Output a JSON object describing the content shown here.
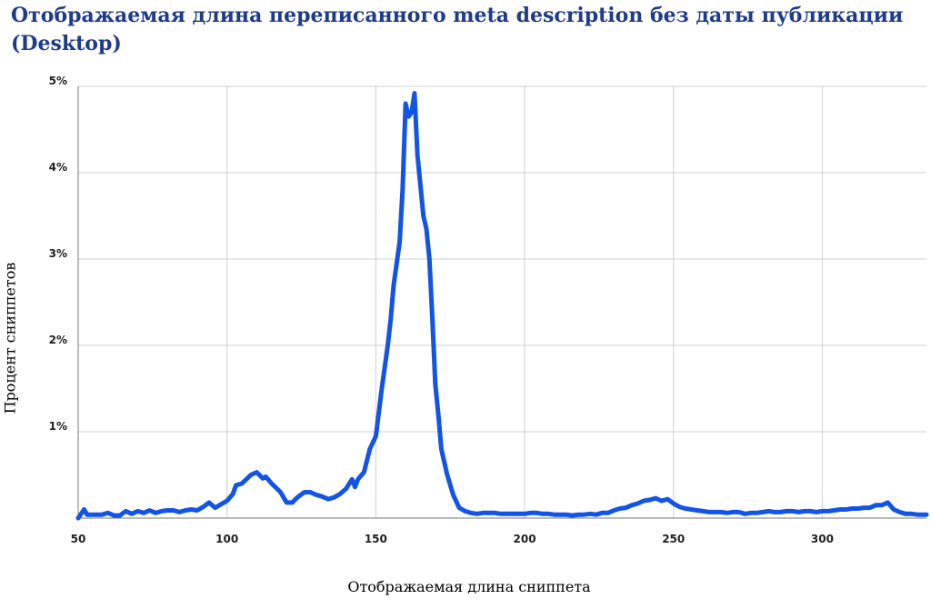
{
  "chart_data": {
    "type": "line",
    "title": "Отображаемая длина переписанного meta description без даты публикации (Desktop)",
    "xlabel": "Отображаемая длина сниппета",
    "ylabel": "Процент сниппетов",
    "xlim": [
      50,
      335
    ],
    "ylim": [
      0,
      5
    ],
    "x_ticks": [
      50,
      100,
      150,
      200,
      250,
      300
    ],
    "y_ticks": [
      1,
      2,
      3,
      4,
      5
    ],
    "x_tick_labels": [
      "50",
      "100",
      "150",
      "200",
      "250",
      "300"
    ],
    "y_tick_labels": [
      "1%",
      "2%",
      "3%",
      "4%",
      "5%"
    ],
    "grid": true,
    "colors": {
      "line": "#1254e6",
      "grid": "#d0d0d0",
      "axis": "#777777",
      "title": "#1f3c88"
    },
    "series": [
      {
        "x": [
          50,
          52,
          53,
          55,
          58,
          60,
          62,
          64,
          66,
          68,
          70,
          72,
          74,
          76,
          78,
          80,
          82,
          84,
          86,
          88,
          90,
          92,
          94,
          96,
          98,
          100,
          102,
          103,
          105,
          108,
          110,
          112,
          113,
          115,
          118,
          120,
          122,
          123,
          124,
          126,
          128,
          130,
          132,
          134,
          136,
          138,
          140,
          142,
          143,
          144,
          146,
          148,
          150,
          152,
          154,
          155,
          156,
          158,
          159,
          160,
          161,
          162,
          163,
          164,
          166,
          167,
          168,
          169,
          170,
          171,
          172,
          174,
          176,
          178,
          180,
          182,
          184,
          186,
          188,
          190,
          192,
          194,
          196,
          198,
          200,
          202,
          204,
          206,
          208,
          210,
          212,
          214,
          216,
          218,
          220,
          222,
          224,
          226,
          228,
          230,
          232,
          234,
          236,
          238,
          240,
          242,
          244,
          246,
          248,
          250,
          252,
          254,
          256,
          258,
          260,
          262,
          264,
          266,
          268,
          270,
          272,
          274,
          276,
          278,
          280,
          282,
          284,
          286,
          288,
          290,
          292,
          294,
          296,
          298,
          300,
          302,
          304,
          306,
          308,
          310,
          312,
          314,
          316,
          318,
          320,
          322,
          324,
          326,
          328,
          330,
          332,
          335
        ],
        "values": [
          0.0,
          0.1,
          0.04,
          0.04,
          0.04,
          0.06,
          0.03,
          0.03,
          0.08,
          0.05,
          0.08,
          0.06,
          0.09,
          0.06,
          0.08,
          0.09,
          0.09,
          0.07,
          0.09,
          0.1,
          0.09,
          0.13,
          0.18,
          0.12,
          0.16,
          0.2,
          0.28,
          0.38,
          0.4,
          0.5,
          0.53,
          0.46,
          0.48,
          0.4,
          0.3,
          0.18,
          0.18,
          0.22,
          0.25,
          0.3,
          0.3,
          0.27,
          0.25,
          0.22,
          0.24,
          0.28,
          0.34,
          0.45,
          0.36,
          0.45,
          0.53,
          0.8,
          0.95,
          1.5,
          2.0,
          2.3,
          2.7,
          3.2,
          3.8,
          4.8,
          4.65,
          4.7,
          4.92,
          4.2,
          3.5,
          3.35,
          3.0,
          2.3,
          1.55,
          1.2,
          0.8,
          0.5,
          0.27,
          0.12,
          0.08,
          0.06,
          0.05,
          0.06,
          0.06,
          0.06,
          0.05,
          0.05,
          0.05,
          0.05,
          0.05,
          0.06,
          0.06,
          0.05,
          0.05,
          0.04,
          0.04,
          0.04,
          0.03,
          0.04,
          0.04,
          0.05,
          0.04,
          0.06,
          0.06,
          0.09,
          0.11,
          0.12,
          0.15,
          0.17,
          0.2,
          0.21,
          0.23,
          0.2,
          0.22,
          0.17,
          0.13,
          0.11,
          0.1,
          0.09,
          0.08,
          0.07,
          0.07,
          0.07,
          0.06,
          0.07,
          0.07,
          0.05,
          0.06,
          0.06,
          0.07,
          0.08,
          0.07,
          0.07,
          0.08,
          0.08,
          0.07,
          0.08,
          0.08,
          0.07,
          0.08,
          0.08,
          0.09,
          0.1,
          0.1,
          0.11,
          0.11,
          0.12,
          0.12,
          0.15,
          0.15,
          0.18,
          0.1,
          0.07,
          0.05,
          0.05,
          0.04,
          0.04
        ]
      }
    ]
  }
}
